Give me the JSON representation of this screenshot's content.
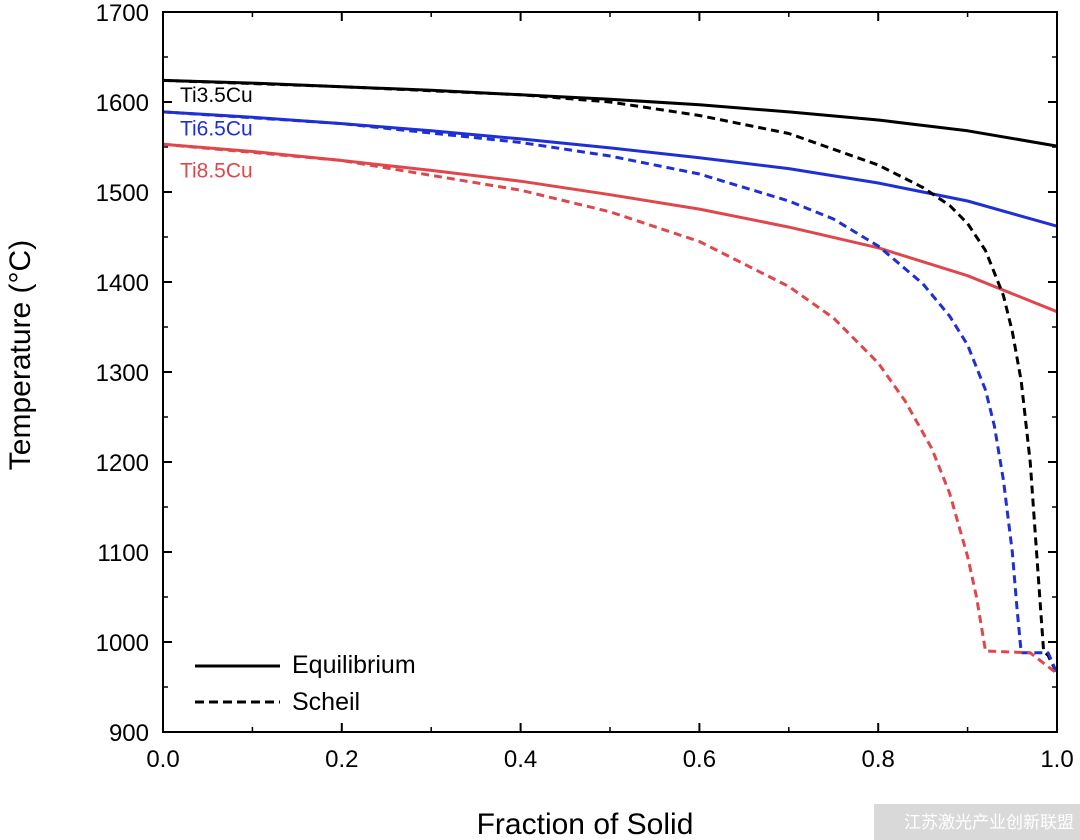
{
  "chart_data": {
    "type": "line",
    "xlabel": "Fraction of Solid",
    "ylabel": "Temperature (°C)",
    "xlim": [
      0.0,
      1.0
    ],
    "ylim": [
      900,
      1700
    ],
    "x_ticks": [
      "0.0",
      "0.2",
      "0.4",
      "0.6",
      "0.8",
      "1.0"
    ],
    "y_ticks": [
      "900",
      "1000",
      "1100",
      "1200",
      "1300",
      "1400",
      "1500",
      "1600",
      "1700"
    ],
    "grid": false,
    "legend_position": "bottom-left",
    "legend": [
      {
        "label": "Equilibrium",
        "style": "solid"
      },
      {
        "label": "Scheil",
        "style": "dashed"
      }
    ],
    "series": [
      {
        "name": "Ti3.5Cu",
        "model": "Equilibrium",
        "color": "#000000",
        "dash": false,
        "x": [
          0.0,
          0.1,
          0.2,
          0.3,
          0.4,
          0.5,
          0.6,
          0.7,
          0.8,
          0.9,
          1.0
        ],
        "y": [
          1624,
          1621,
          1617,
          1613,
          1608,
          1603,
          1597,
          1589,
          1580,
          1568,
          1551
        ]
      },
      {
        "name": "Ti6.5Cu",
        "model": "Equilibrium",
        "color": "#1f2fd6",
        "dash": false,
        "x": [
          0.0,
          0.1,
          0.2,
          0.3,
          0.4,
          0.5,
          0.6,
          0.7,
          0.8,
          0.9,
          1.0
        ],
        "y": [
          1589,
          1583,
          1576,
          1568,
          1559,
          1549,
          1538,
          1526,
          1510,
          1490,
          1462
        ]
      },
      {
        "name": "Ti8.5Cu",
        "model": "Equilibrium",
        "color": "#e0474c",
        "dash": false,
        "x": [
          0.0,
          0.1,
          0.2,
          0.3,
          0.4,
          0.5,
          0.6,
          0.7,
          0.8,
          0.9,
          1.0
        ],
        "y": [
          1553,
          1545,
          1535,
          1524,
          1512,
          1497,
          1481,
          1461,
          1438,
          1407,
          1367
        ]
      },
      {
        "name": "Ti3.5Cu",
        "model": "Scheil",
        "color": "#000000",
        "dash": true,
        "x": [
          0.0,
          0.2,
          0.4,
          0.5,
          0.6,
          0.7,
          0.8,
          0.85,
          0.88,
          0.9,
          0.92,
          0.94,
          0.95,
          0.96,
          0.97,
          0.98,
          0.985,
          0.99,
          1.0
        ],
        "y": [
          1624,
          1617,
          1608,
          1600,
          1585,
          1565,
          1530,
          1505,
          1485,
          1465,
          1435,
          1385,
          1345,
          1290,
          1200,
          1060,
          990,
          985,
          965
        ]
      },
      {
        "name": "Ti6.5Cu",
        "model": "Scheil",
        "color": "#1f2fd6",
        "dash": true,
        "x": [
          0.0,
          0.2,
          0.4,
          0.5,
          0.6,
          0.7,
          0.75,
          0.8,
          0.85,
          0.88,
          0.9,
          0.92,
          0.93,
          0.94,
          0.95,
          0.955,
          0.96,
          0.99,
          1.0
        ],
        "y": [
          1589,
          1576,
          1555,
          1540,
          1520,
          1490,
          1470,
          1440,
          1398,
          1362,
          1330,
          1280,
          1240,
          1180,
          1100,
          1040,
          988,
          988,
          965
        ]
      },
      {
        "name": "Ti8.5Cu",
        "model": "Scheil",
        "color": "#e0474c",
        "dash": true,
        "x": [
          0.0,
          0.2,
          0.4,
          0.5,
          0.6,
          0.7,
          0.75,
          0.8,
          0.83,
          0.86,
          0.88,
          0.9,
          0.91,
          0.915,
          0.92,
          0.97,
          1.0
        ],
        "y": [
          1553,
          1535,
          1502,
          1478,
          1445,
          1395,
          1360,
          1310,
          1268,
          1215,
          1165,
          1095,
          1050,
          1020,
          990,
          988,
          965
        ]
      }
    ],
    "annotations": [
      {
        "text": "Ti3.5Cu",
        "color": "#000000",
        "x": 0.01,
        "y": 1600
      },
      {
        "text": "Ti6.5Cu",
        "color": "#1f2fd6",
        "x": 0.01,
        "y": 1563
      },
      {
        "text": "Ti8.5Cu",
        "color": "#e0474c",
        "x": 0.01,
        "y": 1516
      }
    ]
  },
  "watermark": "江苏激光产业创新联盟"
}
